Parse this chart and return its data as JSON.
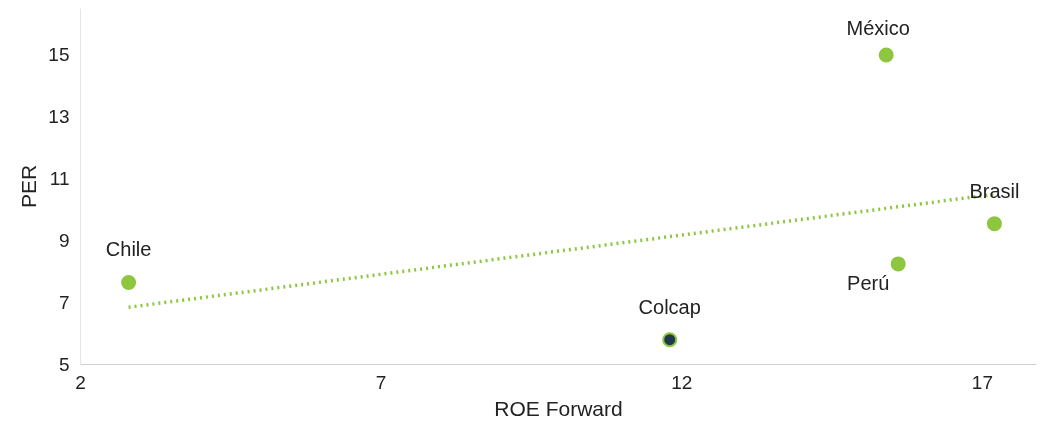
{
  "chart_data": {
    "type": "scatter",
    "xlabel": "ROE Forward",
    "ylabel": "PER",
    "series": [
      {
        "marker": "circle",
        "x": [
          2.8,
          11.8,
          15.4,
          15.6,
          17.2
        ],
        "values": [
          7.65,
          5.8,
          15.0,
          8.25,
          9.55
        ],
        "color": "#8dc63f",
        "colors": [
          "#8dc63f",
          "#1f3a4d",
          "#8dc63f",
          "#8dc63f",
          "#8dc63f"
        ]
      },
      {
        "type": "line",
        "x": [
          2.8,
          17.2
        ],
        "values": [
          6.85,
          10.5
        ],
        "color": "#8dc63f",
        "line_style": "dotted"
      }
    ],
    "annotations": [
      {
        "text": "Chile",
        "x": 2.8,
        "y": 7.65
      },
      {
        "text": "Colcap",
        "x": 11.8,
        "y": 5.8
      },
      {
        "text": "México",
        "x": 15.4,
        "y": 15.0
      },
      {
        "text": "Perú",
        "x": 15.6,
        "y": 8.25
      },
      {
        "text": "Brasil",
        "x": 17.2,
        "y": 9.55
      }
    ],
    "xlim": [
      2,
      17.9
    ],
    "ylim": [
      5,
      16.5
    ],
    "xticks": [
      2,
      7,
      12,
      17
    ],
    "yticks": [
      5,
      7,
      9,
      11,
      13,
      15
    ],
    "grid": false
  }
}
